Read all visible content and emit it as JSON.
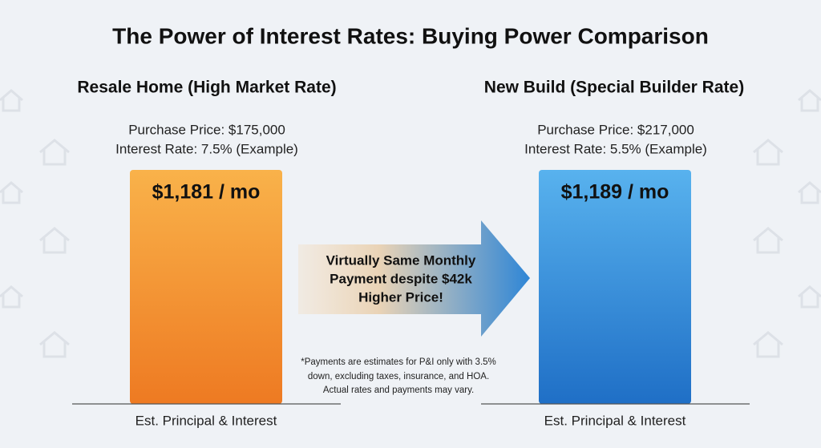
{
  "title": "The Power of Interest Rates: Buying Power Comparison",
  "left": {
    "heading": "Resale Home (High Market Rate)",
    "price": "Purchase Price: $175,000",
    "rate": "Interest Rate: 7.5% (Example)",
    "payment": "$1,181 / mo",
    "axis_label": "Est. Principal & Interest"
  },
  "right": {
    "heading": "New Build (Special Builder Rate)",
    "price": "Purchase Price: $217,000",
    "rate": "Interest Rate: 5.5% (Example)",
    "payment": "$1,189 / mo",
    "axis_label": "Est. Principal & Interest"
  },
  "arrow_text": [
    "Virtually Same Monthly",
    "Payment despite $42k",
    "Higher Price!"
  ],
  "footnote": [
    "*Payments are estimates for P&I only with 3.5%",
    "down, excluding taxes, insurance, and HOA.",
    "Actual rates and payments may vary."
  ]
}
